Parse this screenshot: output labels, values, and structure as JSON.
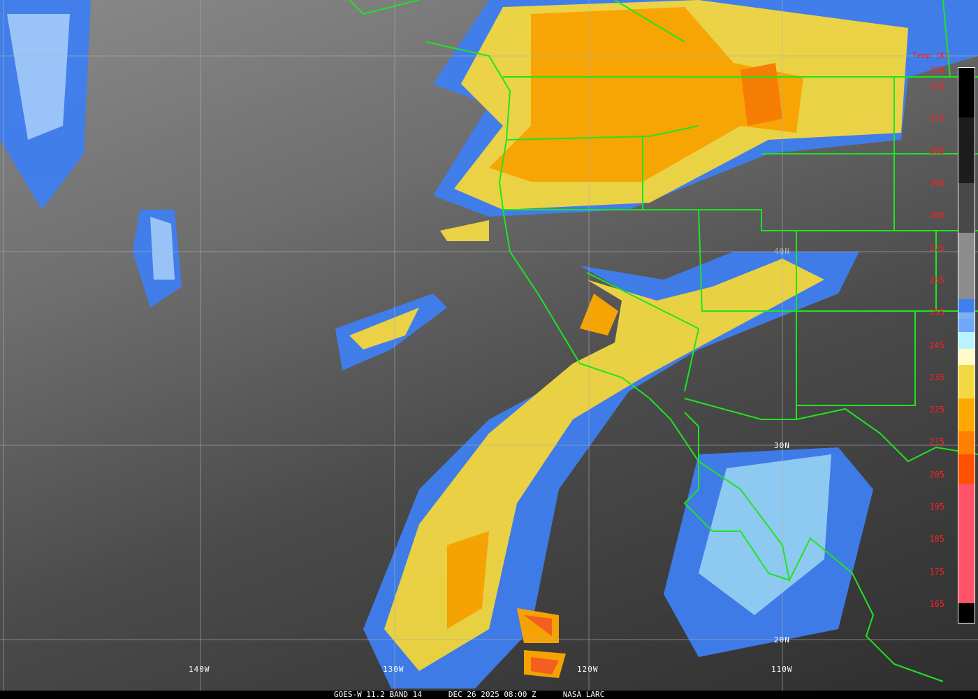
{
  "map": {
    "lon_labels": [
      "140W",
      "130W",
      "120W",
      "110W"
    ],
    "lat_labels": [
      "40N",
      "30N",
      "20N"
    ]
  },
  "legend": {
    "title": "Temp [K]",
    "ticks": [
      "330",
      "325",
      "315",
      "305",
      "295",
      "285",
      "275",
      "265",
      "255",
      "245",
      "235",
      "225",
      "215",
      "205",
      "195",
      "185",
      "175",
      "165"
    ],
    "colors": [
      {
        "from": 330,
        "to": 315,
        "color": "#000000"
      },
      {
        "from": 315,
        "to": 295,
        "color": "#1c1c1c"
      },
      {
        "from": 295,
        "to": 280,
        "color": "#484848"
      },
      {
        "from": 280,
        "to": 260,
        "color": "#8c8c8c"
      },
      {
        "from": 260,
        "to": 256,
        "color": "#3f7ff0"
      },
      {
        "from": 256,
        "to": 254,
        "color": "#7fb0f0"
      },
      {
        "from": 254,
        "to": 250,
        "color": "#6fa8f8"
      },
      {
        "from": 250,
        "to": 245,
        "color": "#b8f4ff"
      },
      {
        "from": 245,
        "to": 240,
        "color": "#fffbc8"
      },
      {
        "from": 240,
        "to": 230,
        "color": "#f2d844"
      },
      {
        "from": 230,
        "to": 220,
        "color": "#ffa800"
      },
      {
        "from": 220,
        "to": 213,
        "color": "#ff8000"
      },
      {
        "from": 213,
        "to": 204,
        "color": "#ff5000"
      },
      {
        "from": 204,
        "to": 168,
        "color": "#ff5468"
      },
      {
        "from": 168,
        "to": 162,
        "color": "#000000"
      }
    ]
  },
  "caption": {
    "satellite": "GOES-W 11.2 BAND 14",
    "datetime": "DEC 26 2025 08:00 Z",
    "source": "NASA LARC"
  }
}
